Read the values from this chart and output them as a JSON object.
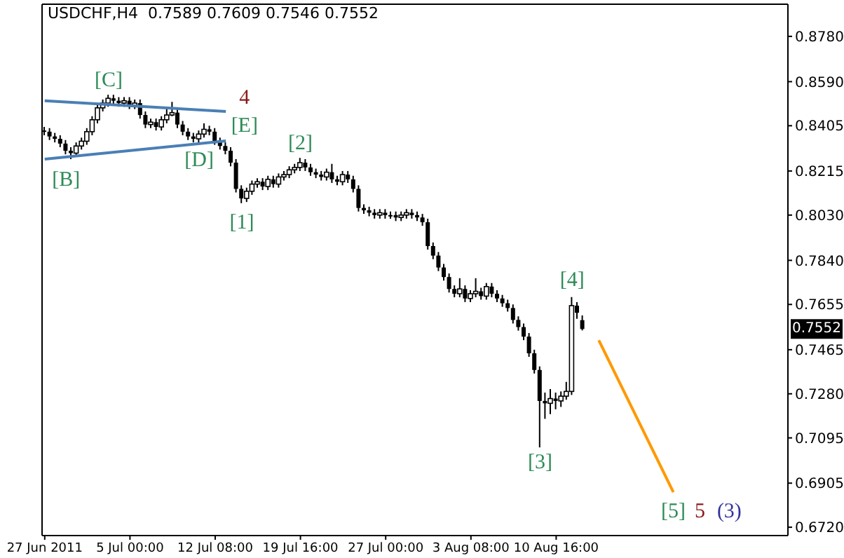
{
  "chart_data": {
    "type": "candlestick",
    "title": "USDCHF,H4  0.7589 0.7609 0.7546 0.7552",
    "color": "#000000",
    "categories": [
      "27 Jun 2011",
      null,
      null,
      null,
      null,
      null,
      null,
      null,
      null,
      null,
      null,
      null,
      null,
      null,
      null,
      null,
      "5 Jul 00:00",
      null,
      null,
      null,
      null,
      null,
      null,
      null,
      null,
      null,
      null,
      null,
      null,
      null,
      null,
      null,
      "12 Jul 08:00",
      null,
      null,
      null,
      null,
      null,
      null,
      null,
      null,
      null,
      null,
      null,
      null,
      null,
      null,
      null,
      "19 Jul 16:00",
      null,
      null,
      null,
      null,
      null,
      null,
      null,
      null,
      null,
      null,
      null,
      null,
      null,
      null,
      null,
      "27 Jul 00:00",
      null,
      null,
      null,
      null,
      null,
      null,
      null,
      null,
      null,
      null,
      null,
      null,
      null,
      null,
      null,
      "3 Aug 08:00",
      null,
      null,
      null,
      null,
      null,
      null,
      null,
      null,
      null,
      null,
      null,
      null,
      null,
      null,
      null,
      "10 Aug 16:00",
      null,
      null,
      null,
      null,
      null,
      null,
      null,
      null,
      null,
      null,
      null,
      null,
      null,
      null,
      null,
      null,
      null,
      null,
      null,
      null,
      null,
      null,
      null,
      null,
      null,
      null,
      null,
      null,
      null,
      null,
      null,
      null,
      null,
      null,
      null,
      null,
      null,
      null,
      null,
      null,
      null,
      null,
      null
    ],
    "ohlc": [
      [
        0.8385,
        0.84,
        0.8365,
        0.838
      ],
      [
        0.838,
        0.8395,
        0.8345,
        0.836
      ],
      [
        0.836,
        0.8375,
        0.8335,
        0.835
      ],
      [
        0.835,
        0.8365,
        0.8315,
        0.833
      ],
      [
        0.833,
        0.8345,
        0.8285,
        0.83
      ],
      [
        0.83,
        0.8315,
        0.8265,
        0.829
      ],
      [
        0.829,
        0.8335,
        0.8275,
        0.832
      ],
      [
        0.832,
        0.8355,
        0.8305,
        0.834
      ],
      [
        0.834,
        0.8395,
        0.8325,
        0.838
      ],
      [
        0.838,
        0.8445,
        0.8365,
        0.843
      ],
      [
        0.843,
        0.8495,
        0.8415,
        0.848
      ],
      [
        0.848,
        0.8515,
        0.8465,
        0.85
      ],
      [
        0.85,
        0.8535,
        0.8485,
        0.852
      ],
      [
        0.852,
        0.8535,
        0.8495,
        0.851
      ],
      [
        0.851,
        0.8525,
        0.8485,
        0.85
      ],
      [
        0.85,
        0.8525,
        0.8485,
        0.851
      ],
      [
        0.851,
        0.8525,
        0.8475,
        0.849
      ],
      [
        0.849,
        0.8515,
        0.8475,
        0.85
      ],
      [
        0.85,
        0.8515,
        0.8435,
        0.845
      ],
      [
        0.845,
        0.8465,
        0.8395,
        0.841
      ],
      [
        0.841,
        0.8435,
        0.8395,
        0.842
      ],
      [
        0.842,
        0.8435,
        0.8385,
        0.84
      ],
      [
        0.84,
        0.8445,
        0.8385,
        0.843
      ],
      [
        0.843,
        0.8475,
        0.8415,
        0.845
      ],
      [
        0.845,
        0.8505,
        0.8445,
        0.846
      ],
      [
        0.846,
        0.8475,
        0.8395,
        0.841
      ],
      [
        0.841,
        0.8425,
        0.8365,
        0.838
      ],
      [
        0.838,
        0.8395,
        0.8345,
        0.836
      ],
      [
        0.836,
        0.8375,
        0.8335,
        0.835
      ],
      [
        0.835,
        0.8385,
        0.8335,
        0.837
      ],
      [
        0.837,
        0.8415,
        0.8355,
        0.839
      ],
      [
        0.839,
        0.8405,
        0.8365,
        0.838
      ],
      [
        0.838,
        0.8395,
        0.8325,
        0.834
      ],
      [
        0.834,
        0.8355,
        0.8305,
        0.832
      ],
      [
        0.832,
        0.8335,
        0.8285,
        0.83
      ],
      [
        0.83,
        0.8315,
        0.8235,
        0.825
      ],
      [
        0.825,
        0.8265,
        0.8125,
        0.814
      ],
      [
        0.814,
        0.8155,
        0.808,
        0.81
      ],
      [
        0.81,
        0.8145,
        0.8085,
        0.813
      ],
      [
        0.813,
        0.8175,
        0.8115,
        0.816
      ],
      [
        0.816,
        0.8185,
        0.8145,
        0.817
      ],
      [
        0.817,
        0.8185,
        0.8135,
        0.815
      ],
      [
        0.815,
        0.8195,
        0.8135,
        0.818
      ],
      [
        0.818,
        0.8195,
        0.8145,
        0.816
      ],
      [
        0.816,
        0.8205,
        0.8145,
        0.819
      ],
      [
        0.819,
        0.8215,
        0.8175,
        0.82
      ],
      [
        0.82,
        0.8235,
        0.8185,
        0.822
      ],
      [
        0.822,
        0.8245,
        0.8205,
        0.823
      ],
      [
        0.823,
        0.827,
        0.8215,
        0.825
      ],
      [
        0.825,
        0.8265,
        0.8215,
        0.823
      ],
      [
        0.823,
        0.8245,
        0.8195,
        0.821
      ],
      [
        0.821,
        0.8225,
        0.8185,
        0.82
      ],
      [
        0.82,
        0.8215,
        0.8175,
        0.819
      ],
      [
        0.819,
        0.8225,
        0.8175,
        0.821
      ],
      [
        0.821,
        0.8245,
        0.8165,
        0.818
      ],
      [
        0.818,
        0.8195,
        0.8155,
        0.817
      ],
      [
        0.817,
        0.8215,
        0.8155,
        0.82
      ],
      [
        0.82,
        0.8215,
        0.8165,
        0.818
      ],
      [
        0.818,
        0.8195,
        0.8125,
        0.814
      ],
      [
        0.814,
        0.8155,
        0.8045,
        0.806
      ],
      [
        0.806,
        0.8075,
        0.8035,
        0.805
      ],
      [
        0.805,
        0.8065,
        0.8025,
        0.804
      ],
      [
        0.804,
        0.8055,
        0.8015,
        0.803
      ],
      [
        0.803,
        0.8055,
        0.8015,
        0.804
      ],
      [
        0.804,
        0.8055,
        0.8015,
        0.803
      ],
      [
        0.803,
        0.8045,
        0.8015,
        0.803
      ],
      [
        0.803,
        0.8045,
        0.8005,
        0.802
      ],
      [
        0.802,
        0.8045,
        0.8005,
        0.803
      ],
      [
        0.803,
        0.8055,
        0.8015,
        0.804
      ],
      [
        0.804,
        0.8055,
        0.8015,
        0.803
      ],
      [
        0.803,
        0.8045,
        0.8005,
        0.802
      ],
      [
        0.802,
        0.8035,
        0.7985,
        0.8
      ],
      [
        0.8,
        0.8015,
        0.7885,
        0.79
      ],
      [
        0.79,
        0.7915,
        0.7845,
        0.786
      ],
      [
        0.786,
        0.7875,
        0.7795,
        0.781
      ],
      [
        0.781,
        0.7825,
        0.7755,
        0.777
      ],
      [
        0.777,
        0.7785,
        0.7705,
        0.772
      ],
      [
        0.772,
        0.7735,
        0.7685,
        0.77
      ],
      [
        0.77,
        0.7765,
        0.7685,
        0.772
      ],
      [
        0.772,
        0.7735,
        0.7665,
        0.768
      ],
      [
        0.768,
        0.7715,
        0.7665,
        0.77
      ],
      [
        0.77,
        0.7765,
        0.7685,
        0.771
      ],
      [
        0.771,
        0.7725,
        0.7675,
        0.769
      ],
      [
        0.769,
        0.7745,
        0.7675,
        0.773
      ],
      [
        0.773,
        0.7745,
        0.7685,
        0.77
      ],
      [
        0.77,
        0.7715,
        0.7665,
        0.768
      ],
      [
        0.768,
        0.7695,
        0.7645,
        0.766
      ],
      [
        0.766,
        0.7675,
        0.7625,
        0.764
      ],
      [
        0.764,
        0.7655,
        0.7575,
        0.759
      ],
      [
        0.759,
        0.7605,
        0.7545,
        0.756
      ],
      [
        0.756,
        0.7575,
        0.7505,
        0.752
      ],
      [
        0.752,
        0.7535,
        0.7435,
        0.745
      ],
      [
        0.745,
        0.7465,
        0.7365,
        0.738
      ],
      [
        0.738,
        0.7395,
        0.7055,
        0.725
      ],
      [
        0.725,
        0.7285,
        0.7175,
        0.724
      ],
      [
        0.724,
        0.73,
        0.7195,
        0.726
      ],
      [
        0.726,
        0.7285,
        0.7215,
        0.725
      ],
      [
        0.725,
        0.729,
        0.7225,
        0.727
      ],
      [
        0.727,
        0.733,
        0.7255,
        0.729
      ],
      [
        0.729,
        0.7686,
        0.7275,
        0.765
      ],
      [
        0.765,
        0.7665,
        0.7595,
        0.762
      ],
      [
        0.7589,
        0.7609,
        0.7546,
        0.7552
      ],
      null,
      null,
      null,
      null,
      null,
      null,
      null,
      null,
      null,
      null,
      null,
      null,
      null,
      null,
      null,
      null,
      null,
      null,
      null,
      null,
      null,
      null,
      null,
      null,
      null,
      null,
      null,
      null,
      null,
      null,
      null,
      null,
      null,
      null,
      null,
      null,
      null,
      null
    ],
    "series": [
      {
        "type": "line",
        "color": "#4a7fb5",
        "values": [
          0.851,
          null,
          null,
          null,
          null,
          null,
          null,
          null,
          null,
          null,
          null,
          null,
          null,
          null,
          null,
          null,
          null,
          null,
          null,
          null,
          null,
          null,
          null,
          null,
          null,
          null,
          null,
          null,
          null,
          null,
          null,
          null,
          null,
          null,
          0.8465,
          null,
          null,
          null,
          null,
          null,
          null,
          null,
          null,
          null,
          null,
          null,
          null,
          null,
          null,
          null,
          null,
          null,
          null,
          null,
          null,
          null,
          null,
          null,
          null,
          null,
          null,
          null,
          null,
          null,
          null,
          null,
          null,
          null,
          null,
          null,
          null,
          null,
          null,
          null,
          null,
          null,
          null,
          null,
          null,
          null,
          null,
          null,
          null,
          null,
          null,
          null,
          null,
          null,
          null,
          null,
          null,
          null,
          null,
          null,
          null,
          null,
          null,
          null,
          null,
          null,
          null,
          null,
          null,
          null,
          null,
          null,
          null,
          null,
          null,
          null,
          null,
          null,
          null,
          null,
          null,
          null,
          null,
          null,
          null,
          null,
          null,
          null,
          null,
          null,
          null,
          null,
          null,
          null,
          null,
          null,
          null,
          null,
          null,
          null,
          null,
          null,
          null,
          null,
          null,
          null
        ]
      },
      {
        "type": "line",
        "color": "#4a7fb5",
        "values": [
          0.8265,
          null,
          null,
          null,
          null,
          null,
          null,
          null,
          null,
          null,
          null,
          null,
          null,
          null,
          null,
          null,
          null,
          null,
          null,
          null,
          null,
          null,
          null,
          null,
          null,
          null,
          null,
          null,
          null,
          null,
          null,
          null,
          null,
          null,
          0.8341,
          null,
          null,
          null,
          null,
          null,
          null,
          null,
          null,
          null,
          null,
          null,
          null,
          null,
          null,
          null,
          null,
          null,
          null,
          null,
          null,
          null,
          null,
          null,
          null,
          null,
          null,
          null,
          null,
          null,
          null,
          null,
          null,
          null,
          null,
          null,
          null,
          null,
          null,
          null,
          null,
          null,
          null,
          null,
          null,
          null,
          null,
          null,
          null,
          null,
          null,
          null,
          null,
          null,
          null,
          null,
          null,
          null,
          null,
          null,
          null,
          null,
          null,
          null,
          null,
          null,
          null,
          null,
          null,
          null,
          null,
          null,
          null,
          null,
          null,
          null,
          null,
          null,
          null,
          null,
          null,
          null,
          null,
          null,
          null,
          null,
          null,
          null,
          null,
          null,
          null,
          null,
          null,
          null,
          null,
          null,
          null,
          null,
          null,
          null,
          null,
          null,
          null,
          null,
          null,
          null
        ]
      },
      {
        "type": "line",
        "color": "#ff9900",
        "values": [
          null,
          null,
          null,
          null,
          null,
          null,
          null,
          null,
          null,
          null,
          null,
          null,
          null,
          null,
          null,
          null,
          null,
          null,
          null,
          null,
          null,
          null,
          null,
          null,
          null,
          null,
          null,
          null,
          null,
          null,
          null,
          null,
          null,
          null,
          null,
          null,
          null,
          null,
          null,
          null,
          null,
          null,
          null,
          null,
          null,
          null,
          null,
          null,
          null,
          null,
          null,
          null,
          null,
          null,
          null,
          null,
          null,
          null,
          null,
          null,
          null,
          null,
          null,
          null,
          null,
          null,
          null,
          null,
          null,
          null,
          null,
          null,
          null,
          null,
          null,
          null,
          null,
          null,
          null,
          null,
          null,
          null,
          null,
          null,
          null,
          null,
          null,
          null,
          null,
          null,
          null,
          null,
          null,
          null,
          null,
          null,
          null,
          null,
          null,
          null,
          null,
          null,
          null,
          null,
          0.7505,
          null,
          null,
          null,
          null,
          null,
          null,
          null,
          null,
          null,
          null,
          null,
          null,
          null,
          0.6867,
          null,
          null,
          null,
          null,
          null,
          null,
          null,
          null,
          null,
          null,
          null,
          null,
          null,
          null,
          null,
          null,
          null,
          null,
          null,
          null,
          null
        ]
      }
    ],
    "ylim": [
      0.6685,
      0.8915
    ],
    "yticks": [
      {
        "value": 0.878,
        "label": "0.8780"
      },
      {
        "value": 0.859,
        "label": "0.8590"
      },
      {
        "value": 0.8405,
        "label": "0.8405"
      },
      {
        "value": 0.8215,
        "label": "0.8215"
      },
      {
        "value": 0.803,
        "label": "0.8030"
      },
      {
        "value": 0.784,
        "label": "0.7840"
      },
      {
        "value": 0.7655,
        "label": "0.7655"
      },
      {
        "value": 0.7465,
        "label": "0.7465"
      },
      {
        "value": 0.728,
        "label": "0.7280"
      },
      {
        "value": 0.7095,
        "label": "0.7095"
      },
      {
        "value": 0.6905,
        "label": "0.6905"
      },
      {
        "value": 0.672,
        "label": "0.6720"
      }
    ],
    "annotations": [
      {
        "text": "[B]",
        "y": 0.8265
      },
      {
        "text": "[C]",
        "y": 0.8535
      },
      {
        "text": "[D]",
        "y": 0.8335
      },
      "[E]",
      "4",
      {
        "text": "[1]",
        "y": 0.808
      },
      {
        "text": "[2]",
        "y": 0.827
      },
      {
        "text": "[3]",
        "y": 0.7055
      },
      {
        "text": "[4]",
        "y": 0.7686
      },
      {
        "text": "[5]",
        "y": 0.6867
      },
      "5",
      "(3)",
      {
        "text": "0.7552",
        "y": 0.7552
      }
    ],
    "grid": false,
    "legend": false
  }
}
